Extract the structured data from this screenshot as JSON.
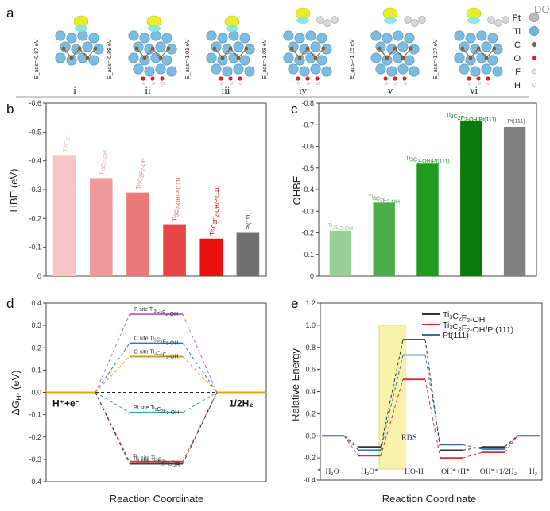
{
  "watermark": "DO",
  "panel_a": {
    "label": "a",
    "structures": [
      {
        "roman": "i",
        "eads": "E_ads=-0.87 eV"
      },
      {
        "roman": "ii",
        "eads": "E_ads=-0.89 eV"
      },
      {
        "roman": "iii",
        "eads": "E_ads=-1.01 eV"
      },
      {
        "roman": "iv",
        "eads": "E_ads=-1.08 eV"
      },
      {
        "roman": "v",
        "eads": "E_ads=-1.15 eV"
      },
      {
        "roman": "vi",
        "eads": "E_ads=-1.27 eV"
      }
    ],
    "legend": [
      {
        "label": "Pt",
        "color": "#b9b9b9"
      },
      {
        "label": "Ti",
        "color": "#6fb4d6"
      },
      {
        "label": "C",
        "color": "#8b5a2b"
      },
      {
        "label": "O",
        "color": "#e02020"
      },
      {
        "label": "F",
        "color": "#e8e8e8"
      },
      {
        "label": "H",
        "color": "#f5f5f5"
      }
    ]
  },
  "chart_data": [
    {
      "id": "b",
      "type": "bar",
      "label": "b",
      "ylabel": "HBE (eV)",
      "ylim": [
        0,
        -0.6
      ],
      "yticks": [
        0,
        -0.1,
        -0.2,
        -0.3,
        -0.4,
        -0.5,
        -0.6
      ],
      "ytick_labels": [
        "0",
        "-0.1",
        "-0.2",
        "-0.3",
        "-0.4",
        "-0.5",
        "-0.6"
      ],
      "categories": [
        "Ti3C2",
        "Ti3C2-OH",
        "Ti3C2F2-OH",
        "Ti3C2-OH/Pt(111)",
        "Ti3C2F2-OH/Pt(111)",
        "Pt(111)"
      ],
      "values": [
        -0.42,
        -0.34,
        -0.29,
        -0.18,
        -0.13,
        -0.15
      ],
      "colors": [
        "#f6c6c6",
        "#ee9a9a",
        "#ea7a7a",
        "#e54545",
        "#e81010",
        "#707070"
      ]
    },
    {
      "id": "c",
      "type": "bar",
      "label": "c",
      "ylabel": "OHBE",
      "ylim": [
        0,
        -0.8
      ],
      "yticks": [
        0,
        -0.1,
        -0.2,
        -0.3,
        -0.4,
        -0.5,
        -0.6,
        -0.7,
        -0.8
      ],
      "ytick_labels": [
        "0",
        "-0.1",
        "-0.2",
        "-0.3",
        "-0.4",
        "-0.5",
        "-0.6",
        "-0.7",
        "-0.8"
      ],
      "categories": [
        "Ti3C2-OH",
        "Ti3C2F2-OH",
        "Ti3C2-OH/Pt(111)",
        "Ti3C2F2-OH/Pt(111)",
        "Pt(111)"
      ],
      "values": [
        -0.21,
        -0.34,
        -0.52,
        -0.72,
        -0.69
      ],
      "colors": [
        "#98cf98",
        "#4cad4c",
        "#1f9a1f",
        "#0a7a0a",
        "#808080"
      ]
    },
    {
      "id": "d",
      "type": "line",
      "label": "d",
      "ylabel": "ΔG_H* (eV)",
      "xlabel": "Reaction Coordinate",
      "ylim": [
        -0.4,
        0.4
      ],
      "yticks": [
        -0.4,
        -0.3,
        -0.2,
        -0.1,
        0.0,
        0.1,
        0.2,
        0.3,
        0.4
      ],
      "ytick_labels": [
        "-0.4",
        "-0.3",
        "-0.2",
        "-0.1",
        "0.0",
        "0.1",
        "0.2",
        "0.3",
        "0.4"
      ],
      "left_state": "H⁺+e⁻",
      "right_state": "1/2H₂",
      "series": [
        {
          "name": "F site Ti3C2F2-OH",
          "value": 0.35,
          "color": "#b070d0"
        },
        {
          "name": "C site Ti3C2F2-OH",
          "value": 0.22,
          "color": "#2878c8"
        },
        {
          "name": "O site Ti3C2F2-OH",
          "value": 0.16,
          "color": "#c8a020"
        },
        {
          "name": "Pt site Ti3C2F2-OH",
          "value": -0.09,
          "color": "#3aa0a0"
        },
        {
          "name": "Ti1 site Ti3C2F2-OH",
          "value": -0.31,
          "color": "#c04040"
        },
        {
          "name": "Ti2 site Ti3C2F2-OH",
          "value": -0.32,
          "color": "#404040"
        }
      ]
    },
    {
      "id": "e",
      "type": "line",
      "label": "e",
      "ylabel": "Relative Energy",
      "xlabel": "Reaction Coordinate",
      "ylim": [
        -0.4,
        1.2
      ],
      "yticks": [
        -0.4,
        -0.2,
        0.0,
        0.2,
        0.4,
        0.6,
        0.8,
        1.0,
        1.2
      ],
      "ytick_labels": [
        "-0.4",
        "-0.2",
        "0.0",
        "0.2",
        "0.4",
        "0.6",
        "0.8",
        "1.0",
        "1.2"
      ],
      "categories": [
        "*+H₂O",
        "H₂O*",
        "HO-H",
        "OH*+H*",
        "OH*+1/2H₂",
        "H₂"
      ],
      "rds_label": "RDS",
      "series": [
        {
          "name": "Ti3C2F2-OH",
          "color": "#333333",
          "values": [
            0.0,
            -0.1,
            0.87,
            -0.13,
            -0.1,
            0.0
          ]
        },
        {
          "name": "Ti3C2F2-OH/Pt(111)",
          "color": "#d03030",
          "values": [
            0.0,
            -0.18,
            0.51,
            -0.2,
            -0.15,
            0.0
          ]
        },
        {
          "name": "Pt(111)",
          "color": "#2f6fb0",
          "values": [
            0.0,
            -0.13,
            0.73,
            -0.08,
            -0.12,
            0.0
          ]
        }
      ]
    }
  ]
}
